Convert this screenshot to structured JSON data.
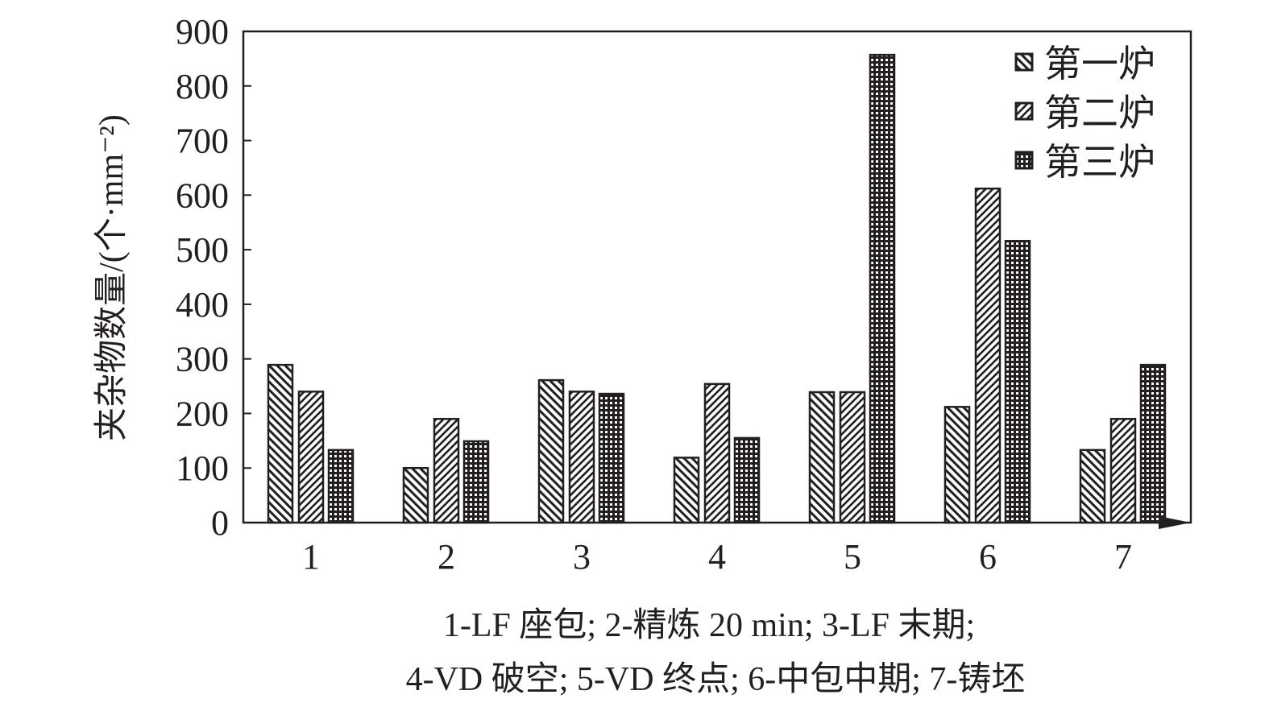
{
  "chart_data": {
    "type": "bar",
    "title": "",
    "xlabel": "",
    "ylabel": "夹杂物数量/(个·mm⁻²)",
    "ylim": [
      0,
      900
    ],
    "yticks": [
      0,
      100,
      200,
      300,
      400,
      500,
      600,
      700,
      800,
      900
    ],
    "categories": [
      "1",
      "2",
      "3",
      "4",
      "5",
      "6",
      "7"
    ],
    "grid": false,
    "legend_position": "top-right",
    "series": [
      {
        "name": "第一炉",
        "pattern": "diagonal-backslash",
        "values": [
          289,
          100,
          261,
          119,
          239,
          212,
          133
        ]
      },
      {
        "name": "第二炉",
        "pattern": "diagonal-slash",
        "values": [
          240,
          190,
          240,
          254,
          239,
          612,
          190
        ]
      },
      {
        "name": "第三炉",
        "pattern": "grid",
        "values": [
          133,
          149,
          236,
          155,
          857,
          516,
          289
        ]
      }
    ],
    "caption": [
      "1-LF 座包; 2-精炼 20 min; 3-LF 末期;",
      "4-VD 破空; 5-VD 终点; 6-中包中期; 7-铸坯"
    ],
    "colors": {
      "axis": "#231f20",
      "bar_fill": "#ffffff"
    }
  }
}
